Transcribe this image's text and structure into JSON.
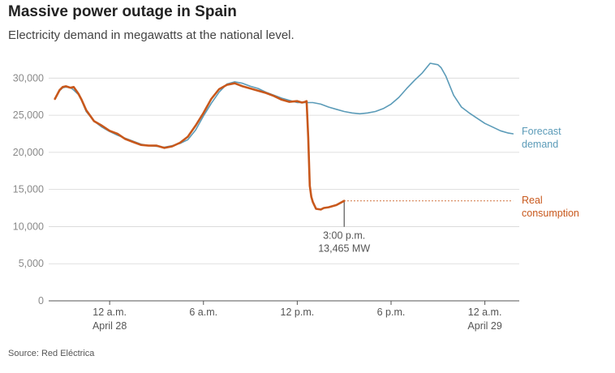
{
  "header": {
    "title": "Massive power outage in Spain",
    "subtitle": "Electricity demand in megawatts at the national level."
  },
  "footer": {
    "source": "Source: Red Eléctrica"
  },
  "colors": {
    "forecast": "#5b9bb8",
    "real": "#c8581c",
    "grid": "#d6d6d6",
    "axis": "#555555"
  },
  "chart_data": {
    "type": "line",
    "title": "Massive power outage in Spain",
    "subtitle": "Electricity demand in megawatts at the national level.",
    "ylim": [
      0,
      32000
    ],
    "yticks": [
      0,
      5000,
      10000,
      15000,
      20000,
      25000,
      30000
    ],
    "ytick_labels": [
      "0",
      "5,000",
      "10,000",
      "15,000",
      "20,000",
      "25,000",
      "30,000"
    ],
    "x_unit": "hours from midnight April 28",
    "xlim": [
      -3.9,
      26.2
    ],
    "xticks": [
      {
        "x": 0,
        "label": "12 a.m.",
        "sublabel": "April 28"
      },
      {
        "x": 6,
        "label": "6 a.m.",
        "sublabel": ""
      },
      {
        "x": 12,
        "label": "12 p.m.",
        "sublabel": ""
      },
      {
        "x": 18,
        "label": "6 p.m.",
        "sublabel": ""
      },
      {
        "x": 24,
        "label": "12 a.m.",
        "sublabel": "April 29"
      }
    ],
    "grid": true,
    "series": [
      {
        "name": "Forecast demand",
        "label_lines": [
          "Forecast",
          "demand"
        ],
        "x": [
          -3.5,
          -3.2,
          -3.0,
          -2.8,
          -2.5,
          -2.3,
          -2.0,
          -1.8,
          -1.5,
          -1.0,
          -0.5,
          0.0,
          0.5,
          1.0,
          1.5,
          2.0,
          2.5,
          3.0,
          3.5,
          4.0,
          4.5,
          5.0,
          5.5,
          6.0,
          6.5,
          7.0,
          7.5,
          8.0,
          8.5,
          9.0,
          9.5,
          10.0,
          10.5,
          11.0,
          11.5,
          12.0,
          12.5,
          13.0,
          13.5,
          14.0,
          14.5,
          15.0,
          15.5,
          16.0,
          16.5,
          17.0,
          17.5,
          18.0,
          18.5,
          19.0,
          19.5,
          20.0,
          20.5,
          21.0,
          21.2,
          21.5,
          22.0,
          22.5,
          23.0,
          23.5,
          24.0,
          24.5,
          25.0,
          25.5,
          25.8
        ],
        "y": [
          27300,
          28300,
          28700,
          28800,
          28700,
          28400,
          27800,
          27000,
          25500,
          24200,
          23400,
          22800,
          22300,
          21900,
          21500,
          21100,
          20900,
          20800,
          20700,
          20900,
          21200,
          21700,
          23000,
          24900,
          26600,
          28100,
          29200,
          29500,
          29300,
          28900,
          28600,
          28100,
          27700,
          27300,
          27000,
          26700,
          26700,
          26700,
          26500,
          26100,
          25800,
          25500,
          25300,
          25200,
          25300,
          25500,
          25900,
          26500,
          27400,
          28600,
          29700,
          30700,
          32000,
          31800,
          31400,
          30300,
          27700,
          26100,
          25300,
          24600,
          23900,
          23400,
          22900,
          22600,
          22500
        ]
      },
      {
        "name": "Real consumption",
        "label_lines": [
          "Real",
          "consumption"
        ],
        "x": [
          -3.5,
          -3.2,
          -3.0,
          -2.8,
          -2.5,
          -2.3,
          -2.0,
          -1.8,
          -1.5,
          -1.0,
          -0.5,
          0.0,
          0.5,
          1.0,
          1.5,
          2.0,
          2.5,
          3.0,
          3.5,
          4.0,
          4.5,
          5.0,
          5.5,
          6.0,
          6.5,
          7.0,
          7.5,
          8.0,
          8.5,
          9.0,
          9.5,
          10.0,
          10.5,
          11.0,
          11.5,
          12.0,
          12.3,
          12.5,
          12.6,
          12.7,
          12.8,
          12.9,
          13.0,
          13.2,
          13.5,
          13.7,
          14.0,
          14.5,
          15.0
        ],
        "y": [
          27200,
          28400,
          28800,
          28900,
          28700,
          28800,
          27900,
          27100,
          25700,
          24200,
          23600,
          22900,
          22500,
          21800,
          21400,
          21000,
          20900,
          20900,
          20600,
          20800,
          21300,
          22100,
          23600,
          25300,
          27200,
          28500,
          29100,
          29300,
          28900,
          28600,
          28300,
          28000,
          27600,
          27100,
          26800,
          26900,
          26700,
          26800,
          26900,
          22000,
          15500,
          14000,
          13300,
          12400,
          12300,
          12500,
          12600,
          12900,
          13465
        ]
      }
    ],
    "reference_line": {
      "y": 13465,
      "x_start": 15.0,
      "x_end": 25.8,
      "style": "dotted"
    },
    "annotations": [
      {
        "x": 15.0,
        "y": 13465,
        "lines": [
          "3:00 p.m.",
          "13,465 MW"
        ]
      }
    ]
  }
}
